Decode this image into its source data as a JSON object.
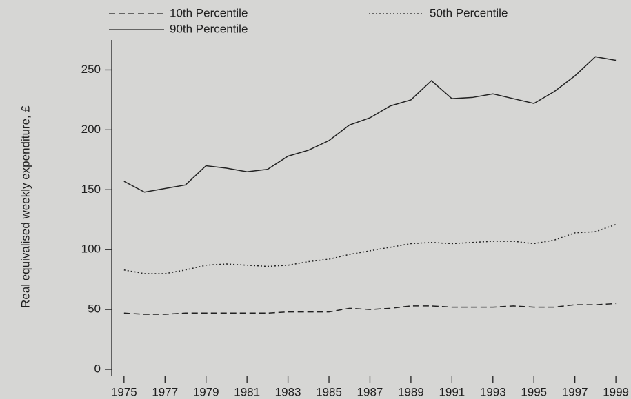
{
  "chart_data": {
    "type": "line",
    "y_label": "Real equivalised weekly expenditure, £",
    "x": [
      1975,
      1976,
      1977,
      1978,
      1979,
      1980,
      1981,
      1982,
      1983,
      1984,
      1985,
      1986,
      1987,
      1988,
      1989,
      1990,
      1991,
      1992,
      1993,
      1994,
      1995,
      1996,
      1997,
      1998,
      1999
    ],
    "xlim": [
      1974.4,
      1999.4
    ],
    "xticks": [
      1975,
      1977,
      1979,
      1981,
      1983,
      1985,
      1987,
      1989,
      1991,
      1993,
      1995,
      1997,
      1999
    ],
    "ylim": [
      0,
      275
    ],
    "yticks": [
      0,
      50,
      100,
      150,
      200,
      250
    ],
    "series": [
      {
        "name": "10th Percentile",
        "color": "#222222",
        "dash": "dashed",
        "values": [
          47,
          46,
          46,
          47,
          47,
          47,
          47,
          47,
          48,
          48,
          48,
          51,
          50,
          51,
          53,
          53,
          52,
          52,
          52,
          53,
          52,
          52,
          54,
          54,
          55
        ]
      },
      {
        "name": "50th Percentile",
        "color": "#222222",
        "dash": "dotted",
        "values": [
          83,
          80,
          80,
          83,
          87,
          88,
          87,
          86,
          87,
          90,
          92,
          96,
          99,
          102,
          105,
          106,
          105,
          106,
          107,
          107,
          105,
          108,
          114,
          115,
          121
        ]
      },
      {
        "name": "90th Percentile",
        "color": "#222222",
        "dash": "solid",
        "values": [
          157,
          148,
          151,
          154,
          170,
          168,
          165,
          167,
          178,
          183,
          191,
          204,
          210,
          220,
          225,
          241,
          226,
          227,
          230,
          226,
          222,
          232,
          245,
          261,
          258
        ]
      }
    ]
  }
}
